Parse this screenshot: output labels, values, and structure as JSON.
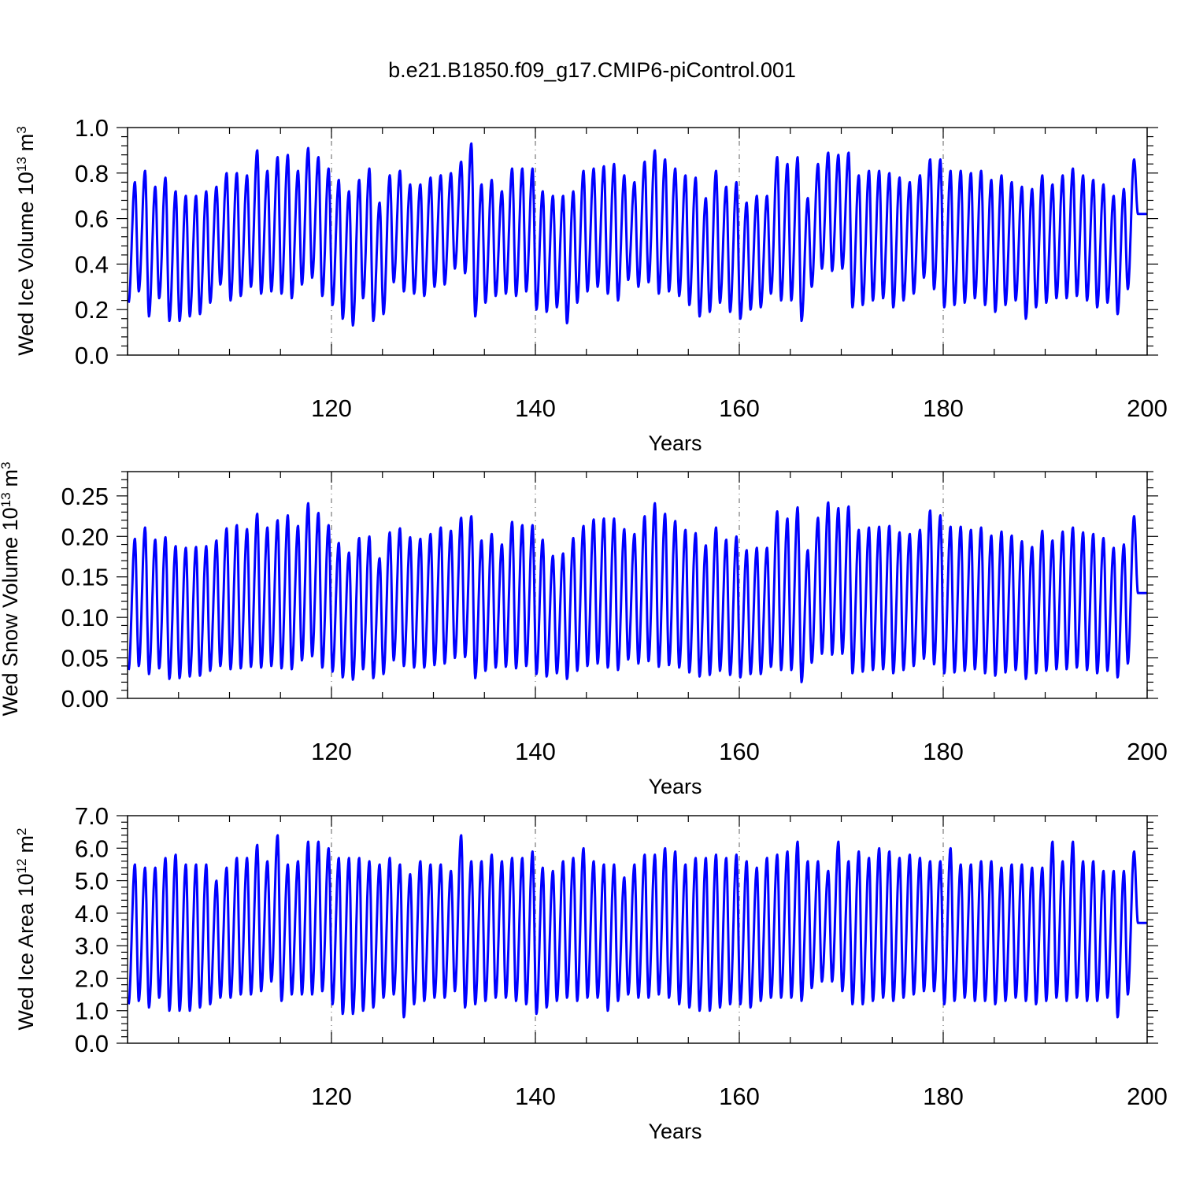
{
  "title": "b.e21.B1850.f09_g17.CMIP6-piControl.001",
  "colors": {
    "series": "#0000ff",
    "grid": "#777777",
    "axes": "#000000"
  },
  "chart_data": [
    {
      "type": "line",
      "ylabel_text": "Wed Ice Volume 10",
      "ylabel_exp": "13",
      "ylabel_unit": "m",
      "ylabel_unit_exp": "3",
      "xlabel": "Years",
      "xlim": [
        100,
        200
      ],
      "ylim": [
        0.0,
        1.0
      ],
      "xticks": [
        "120",
        "140",
        "160",
        "180",
        "200"
      ],
      "yticks": [
        "0.0",
        "0.2",
        "0.4",
        "0.6",
        "0.8",
        "1.0"
      ],
      "grid": "vertical dash-dot at labeled x ticks",
      "series": [
        {
          "x_start": 100,
          "step": 1,
          "max": [
            0.76,
            0.81,
            0.74,
            0.78,
            0.72,
            0.7,
            0.7,
            0.72,
            0.74,
            0.8,
            0.8,
            0.79,
            0.9,
            0.81,
            0.87,
            0.88,
            0.81,
            0.91,
            0.87,
            0.82,
            0.77,
            0.72,
            0.77,
            0.82,
            0.67,
            0.79,
            0.81,
            0.75,
            0.75,
            0.78,
            0.79,
            0.8,
            0.85,
            0.93,
            0.75,
            0.77,
            0.72,
            0.82,
            0.82,
            0.82,
            0.72,
            0.7,
            0.7,
            0.72,
            0.81,
            0.82,
            0.83,
            0.84,
            0.79,
            0.76,
            0.85,
            0.9,
            0.86,
            0.82,
            0.79,
            0.78,
            0.69,
            0.81,
            0.74,
            0.76,
            0.67,
            0.7,
            0.7,
            0.87,
            0.84,
            0.87,
            0.69,
            0.84,
            0.89,
            0.88,
            0.89,
            0.79,
            0.81,
            0.81,
            0.8,
            0.78,
            0.76,
            0.79,
            0.86,
            0.86,
            0.81,
            0.81,
            0.8,
            0.81,
            0.77,
            0.79,
            0.76,
            0.74,
            0.73,
            0.79,
            0.75,
            0.79,
            0.82,
            0.79,
            0.77,
            0.75,
            0.7,
            0.73,
            0.86,
            0.62
          ],
          "min": [
            0.23,
            0.28,
            0.17,
            0.25,
            0.15,
            0.15,
            0.17,
            0.18,
            0.23,
            0.31,
            0.24,
            0.26,
            0.3,
            0.27,
            0.28,
            0.27,
            0.25,
            0.31,
            0.34,
            0.26,
            0.22,
            0.16,
            0.13,
            0.25,
            0.15,
            0.18,
            0.32,
            0.28,
            0.27,
            0.26,
            0.3,
            0.31,
            0.38,
            0.36,
            0.17,
            0.23,
            0.26,
            0.27,
            0.26,
            0.28,
            0.2,
            0.19,
            0.21,
            0.14,
            0.23,
            0.28,
            0.3,
            0.27,
            0.24,
            0.33,
            0.3,
            0.32,
            0.27,
            0.28,
            0.26,
            0.22,
            0.17,
            0.19,
            0.23,
            0.19,
            0.16,
            0.2,
            0.21,
            0.27,
            0.24,
            0.24,
            0.15,
            0.3,
            0.38,
            0.37,
            0.38,
            0.21,
            0.22,
            0.24,
            0.25,
            0.21,
            0.24,
            0.27,
            0.34,
            0.29,
            0.21,
            0.22,
            0.23,
            0.25,
            0.22,
            0.19,
            0.22,
            0.24,
            0.16,
            0.21,
            0.23,
            0.25,
            0.25,
            0.26,
            0.24,
            0.21,
            0.23,
            0.18,
            0.29,
            0.62
          ]
        }
      ]
    },
    {
      "type": "line",
      "ylabel_text": "Wed Snow Volume 10",
      "ylabel_exp": "13",
      "ylabel_unit": "m",
      "ylabel_unit_exp": "3",
      "xlabel": "Years",
      "xlim": [
        100,
        200
      ],
      "ylim": [
        0.0,
        0.28
      ],
      "xticks": [
        "120",
        "140",
        "160",
        "180",
        "200"
      ],
      "yticks": [
        "0.00",
        "0.05",
        "0.10",
        "0.15",
        "0.20",
        "0.25"
      ],
      "grid": "vertical dash-dot at labeled x ticks",
      "series": [
        {
          "x_start": 100,
          "step": 1,
          "max": [
            0.197,
            0.211,
            0.196,
            0.199,
            0.188,
            0.186,
            0.187,
            0.188,
            0.195,
            0.21,
            0.214,
            0.209,
            0.228,
            0.211,
            0.22,
            0.226,
            0.213,
            0.241,
            0.229,
            0.214,
            0.192,
            0.18,
            0.198,
            0.2,
            0.173,
            0.205,
            0.21,
            0.199,
            0.197,
            0.203,
            0.211,
            0.207,
            0.223,
            0.225,
            0.195,
            0.203,
            0.19,
            0.218,
            0.214,
            0.214,
            0.196,
            0.176,
            0.179,
            0.198,
            0.213,
            0.221,
            0.222,
            0.222,
            0.209,
            0.203,
            0.225,
            0.241,
            0.228,
            0.219,
            0.208,
            0.204,
            0.189,
            0.211,
            0.196,
            0.2,
            0.183,
            0.186,
            0.186,
            0.231,
            0.222,
            0.236,
            0.183,
            0.223,
            0.242,
            0.235,
            0.237,
            0.208,
            0.211,
            0.212,
            0.213,
            0.205,
            0.203,
            0.208,
            0.232,
            0.226,
            0.212,
            0.212,
            0.208,
            0.211,
            0.201,
            0.206,
            0.201,
            0.194,
            0.187,
            0.207,
            0.195,
            0.206,
            0.211,
            0.205,
            0.203,
            0.198,
            0.186,
            0.19,
            0.225,
            0.13
          ],
          "min": [
            0.035,
            0.04,
            0.03,
            0.037,
            0.024,
            0.025,
            0.027,
            0.028,
            0.034,
            0.04,
            0.036,
            0.037,
            0.039,
            0.038,
            0.04,
            0.037,
            0.036,
            0.047,
            0.052,
            0.038,
            0.033,
            0.026,
            0.023,
            0.036,
            0.025,
            0.03,
            0.047,
            0.04,
            0.038,
            0.038,
            0.041,
            0.043,
            0.05,
            0.051,
            0.025,
            0.034,
            0.038,
            0.039,
            0.037,
            0.04,
            0.03,
            0.027,
            0.031,
            0.024,
            0.034,
            0.04,
            0.043,
            0.038,
            0.035,
            0.048,
            0.043,
            0.046,
            0.039,
            0.041,
            0.038,
            0.032,
            0.027,
            0.029,
            0.034,
            0.029,
            0.026,
            0.03,
            0.03,
            0.039,
            0.035,
            0.035,
            0.02,
            0.044,
            0.055,
            0.054,
            0.055,
            0.031,
            0.033,
            0.035,
            0.036,
            0.031,
            0.035,
            0.04,
            0.049,
            0.042,
            0.031,
            0.032,
            0.034,
            0.036,
            0.031,
            0.028,
            0.032,
            0.035,
            0.024,
            0.031,
            0.034,
            0.036,
            0.036,
            0.038,
            0.035,
            0.031,
            0.034,
            0.026,
            0.043,
            0.13
          ]
        }
      ]
    },
    {
      "type": "line",
      "ylabel_text": "Wed Ice Area 10",
      "ylabel_exp": "12",
      "ylabel_unit": "m",
      "ylabel_unit_exp": "2",
      "xlabel": "Years",
      "xlim": [
        100,
        200
      ],
      "ylim": [
        0.0,
        7.0
      ],
      "xticks": [
        "120",
        "140",
        "160",
        "180",
        "200"
      ],
      "yticks": [
        "0.0",
        "1.0",
        "2.0",
        "3.0",
        "4.0",
        "5.0",
        "6.0",
        "7.0"
      ],
      "grid": "vertical dash-dot at labeled x ticks",
      "series": [
        {
          "x_start": 100,
          "step": 1,
          "max": [
            5.5,
            5.4,
            5.4,
            5.7,
            5.8,
            5.5,
            5.5,
            5.5,
            5.0,
            5.4,
            5.7,
            5.7,
            6.1,
            5.6,
            6.4,
            5.5,
            5.6,
            6.2,
            6.2,
            6.0,
            5.7,
            5.7,
            5.7,
            5.6,
            5.5,
            5.7,
            5.5,
            5.2,
            5.6,
            5.5,
            5.5,
            5.3,
            6.4,
            5.6,
            5.6,
            5.8,
            5.6,
            5.7,
            5.7,
            5.9,
            5.4,
            5.3,
            5.6,
            5.7,
            6.0,
            5.6,
            5.5,
            5.5,
            5.1,
            5.5,
            5.8,
            5.8,
            6.0,
            5.9,
            5.5,
            5.7,
            5.7,
            5.8,
            5.7,
            5.8,
            5.6,
            5.4,
            5.7,
            5.8,
            5.9,
            6.2,
            5.6,
            5.6,
            5.3,
            6.2,
            5.6,
            5.9,
            5.7,
            6.0,
            5.9,
            5.7,
            5.8,
            5.7,
            5.6,
            5.6,
            6.0,
            5.5,
            5.5,
            5.6,
            5.6,
            5.4,
            5.5,
            5.5,
            5.4,
            5.4,
            6.2,
            5.6,
            6.2,
            5.6,
            5.6,
            5.3,
            5.3,
            5.3,
            5.9,
            3.7
          ],
          "min": [
            1.2,
            1.3,
            1.1,
            1.4,
            1.0,
            1.0,
            1.0,
            1.1,
            1.2,
            1.4,
            1.4,
            1.5,
            1.5,
            1.6,
            1.9,
            1.3,
            1.5,
            1.5,
            1.5,
            1.6,
            1.2,
            0.9,
            0.9,
            1.0,
            1.1,
            1.4,
            1.5,
            0.8,
            1.2,
            1.3,
            1.4,
            1.4,
            1.6,
            1.1,
            1.2,
            1.3,
            1.4,
            1.4,
            1.3,
            1.2,
            0.9,
            1.1,
            1.3,
            1.4,
            1.3,
            1.4,
            1.4,
            1.0,
            1.3,
            1.5,
            1.4,
            1.4,
            1.5,
            1.4,
            1.2,
            1.1,
            1.0,
            1.0,
            1.1,
            1.2,
            1.2,
            1.1,
            1.3,
            1.4,
            1.4,
            1.4,
            1.3,
            1.7,
            1.9,
            1.9,
            1.6,
            1.2,
            1.2,
            1.3,
            1.4,
            1.3,
            1.4,
            1.5,
            1.6,
            1.6,
            1.2,
            1.3,
            1.4,
            1.3,
            1.3,
            1.2,
            1.3,
            1.4,
            1.3,
            1.2,
            1.3,
            1.4,
            1.3,
            1.4,
            1.3,
            1.3,
            1.4,
            0.8,
            1.5,
            3.7
          ]
        }
      ]
    }
  ]
}
